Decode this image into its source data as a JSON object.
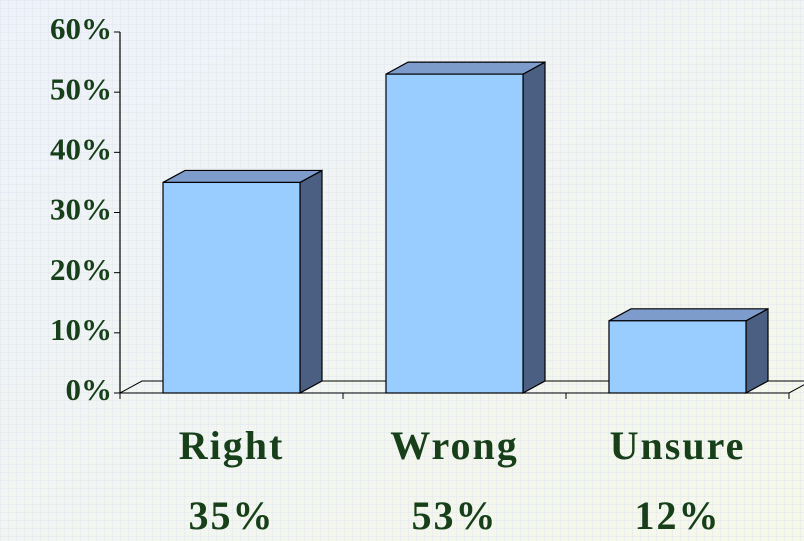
{
  "chart_data": {
    "type": "bar3d",
    "categories": [
      "Right",
      "Wrong",
      "Unsure"
    ],
    "values": [
      35,
      53,
      12
    ],
    "value_labels": [
      "35%",
      "53%",
      "12%"
    ],
    "color": "#99ccff",
    "ylim": [
      0,
      60
    ],
    "yticks": [
      {
        "value": 0,
        "label": "0%"
      },
      {
        "value": 10,
        "label": "10%"
      },
      {
        "value": 20,
        "label": "20%"
      },
      {
        "value": 30,
        "label": "30%"
      },
      {
        "value": 40,
        "label": "40%"
      },
      {
        "value": 50,
        "label": "50%"
      },
      {
        "value": 60,
        "label": "60%"
      }
    ]
  }
}
